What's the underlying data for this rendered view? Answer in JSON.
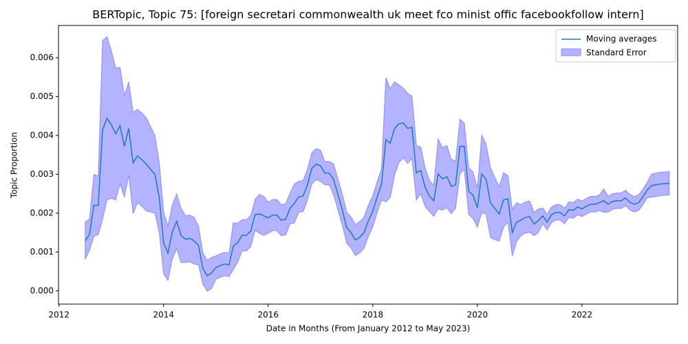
{
  "chart_data": {
    "type": "line",
    "title": "BERTopic, Topic 75: [foreign secretari commonwealth uk meet fco minist offic facebookfollow intern]",
    "xlabel": "Date in Months (From January 2012 to May 2023)",
    "ylabel": "Topic Proportion",
    "x": [
      2012.5,
      2012.583,
      2012.667,
      2012.75,
      2012.833,
      2012.917,
      2013,
      2013.083,
      2013.167,
      2013.25,
      2013.333,
      2013.417,
      2013.5,
      2013.583,
      2013.667,
      2013.75,
      2013.833,
      2013.917,
      2014,
      2014.083,
      2014.167,
      2014.25,
      2014.333,
      2014.417,
      2014.5,
      2014.583,
      2014.667,
      2014.75,
      2014.833,
      2014.917,
      2015,
      2015.083,
      2015.167,
      2015.25,
      2015.333,
      2015.417,
      2015.5,
      2015.583,
      2015.667,
      2015.75,
      2015.833,
      2015.917,
      2016,
      2016.083,
      2016.167,
      2016.25,
      2016.333,
      2016.417,
      2016.5,
      2016.583,
      2016.667,
      2016.75,
      2016.833,
      2016.917,
      2017,
      2017.083,
      2017.167,
      2017.25,
      2017.333,
      2017.417,
      2017.5,
      2017.583,
      2017.667,
      2017.75,
      2017.833,
      2017.917,
      2018,
      2018.083,
      2018.167,
      2018.25,
      2018.333,
      2018.417,
      2018.5,
      2018.583,
      2018.667,
      2018.75,
      2018.833,
      2018.917,
      2019,
      2019.083,
      2019.167,
      2019.25,
      2019.333,
      2019.417,
      2019.5,
      2019.583,
      2019.667,
      2019.75,
      2019.833,
      2019.917,
      2020,
      2020.083,
      2020.167,
      2020.25,
      2020.333,
      2020.417,
      2020.5,
      2020.583,
      2020.667,
      2020.75,
      2020.833,
      2020.917,
      2021,
      2021.083,
      2021.167,
      2021.25,
      2021.333,
      2021.417,
      2021.5,
      2021.583,
      2021.667,
      2021.75,
      2021.833,
      2021.917,
      2022,
      2022.083,
      2022.167,
      2022.25,
      2022.333,
      2022.417,
      2022.5,
      2022.583,
      2022.667,
      2022.75,
      2022.833,
      2022.917,
      2023,
      2023.083,
      2023.167,
      2023.25,
      2023.333,
      2023.417,
      2023.5,
      2023.583,
      2023.667
    ],
    "series": [
      {
        "name": "Moving averages",
        "color": "#1f77b4",
        "error_name": "Standard Error",
        "error_color": "#b3b3ff",
        "error_edge": "#8a8aff",
        "values": [
          0.00129,
          0.00145,
          0.0022,
          0.0022,
          0.00414,
          0.00444,
          0.00428,
          0.00404,
          0.00425,
          0.00372,
          0.00418,
          0.00329,
          0.00347,
          0.00338,
          0.00326,
          0.00313,
          0.003,
          0.0024,
          0.00124,
          0.00097,
          0.00152,
          0.00179,
          0.00143,
          0.00133,
          0.00135,
          0.00129,
          0.00117,
          0.00058,
          0.00039,
          0.00046,
          0.0006,
          0.00065,
          0.00069,
          0.00067,
          0.00115,
          0.00124,
          0.00143,
          0.00143,
          0.00154,
          0.00196,
          0.00198,
          0.00193,
          0.00188,
          0.00195,
          0.00195,
          0.00182,
          0.00184,
          0.00212,
          0.00225,
          0.00242,
          0.00244,
          0.00273,
          0.00315,
          0.00326,
          0.00322,
          0.00303,
          0.00303,
          0.00287,
          0.00248,
          0.00209,
          0.00163,
          0.0015,
          0.00131,
          0.00138,
          0.0015,
          0.00181,
          0.00205,
          0.00241,
          0.00274,
          0.00389,
          0.0038,
          0.00418,
          0.0043,
          0.00432,
          0.00418,
          0.00421,
          0.00304,
          0.0031,
          0.00267,
          0.00244,
          0.00232,
          0.00301,
          0.00288,
          0.00294,
          0.00269,
          0.00273,
          0.00372,
          0.00372,
          0.00257,
          0.00246,
          0.00214,
          0.00301,
          0.00287,
          0.00227,
          0.00212,
          0.00198,
          0.00234,
          0.00237,
          0.0015,
          0.00177,
          0.00182,
          0.00189,
          0.00191,
          0.00172,
          0.00181,
          0.00193,
          0.00177,
          0.00196,
          0.00202,
          0.00202,
          0.00193,
          0.00209,
          0.00207,
          0.00216,
          0.00211,
          0.00218,
          0.00223,
          0.00223,
          0.00227,
          0.00232,
          0.00223,
          0.0023,
          0.00232,
          0.00232,
          0.00239,
          0.00228,
          0.00223,
          0.00227,
          0.00242,
          0.0026,
          0.00271,
          0.00273,
          0.00275,
          0.00276,
          0.00277
        ],
        "errors": [
          0.00048,
          0.0004,
          0.0008,
          0.00075,
          0.0023,
          0.0021,
          0.0019,
          0.0017,
          0.0015,
          0.0013,
          0.0012,
          0.0013,
          0.0012,
          0.0012,
          0.0012,
          0.0011,
          0.001,
          0.0009,
          0.0008,
          0.0007,
          0.0007,
          0.0007,
          0.0007,
          0.0006,
          0.0006,
          0.0006,
          0.0005,
          0.0004,
          0.0004,
          0.0004,
          0.0003,
          0.0003,
          0.0003,
          0.0003,
          0.0006,
          0.0005,
          0.0004,
          0.0004,
          0.0004,
          0.0004,
          0.0005,
          0.0005,
          0.0004,
          0.0004,
          0.0004,
          0.0004,
          0.0004,
          0.0004,
          0.0005,
          0.0004,
          0.0004,
          0.0004,
          0.0004,
          0.0004,
          0.0004,
          0.0003,
          0.0003,
          0.0004,
          0.0004,
          0.0004,
          0.0004,
          0.0004,
          0.0004,
          0.0004,
          0.0004,
          0.0004,
          0.0004,
          0.0004,
          0.0004,
          0.0016,
          0.0014,
          0.0012,
          0.001,
          0.0009,
          0.0009,
          0.0008,
          0.0007,
          0.0006,
          0.0005,
          0.0004,
          0.0004,
          0.0009,
          0.0008,
          0.0008,
          0.0007,
          0.0006,
          0.0007,
          0.0006,
          0.0006,
          0.0006,
          0.0005,
          0.001,
          0.0009,
          0.0009,
          0.0008,
          0.0007,
          0.0007,
          0.0006,
          0.0006,
          0.0005,
          0.0004,
          0.0004,
          0.0004,
          0.0003,
          0.0003,
          0.0002,
          0.0002,
          0.0002,
          0.0002,
          0.0002,
          0.0002,
          0.0002,
          0.0002,
          0.0002,
          0.0002,
          0.0002,
          0.0002,
          0.0002,
          0.0002,
          0.0003,
          0.0002,
          0.0002,
          0.0002,
          0.0002,
          0.0002,
          0.0002,
          0.0002,
          0.0002,
          0.0002,
          0.0002,
          0.0003,
          0.0003,
          0.0003,
          0.0003,
          0.0003
        ]
      }
    ],
    "xlim": [
      2011.99,
      2023.83
    ],
    "ylim": [
      -0.00034,
      0.00683
    ],
    "xticks": [
      2012,
      2014,
      2016,
      2018,
      2020,
      2022
    ],
    "yticks": [
      {
        "value": 0,
        "label": "0.000"
      },
      {
        "value": 0.001,
        "label": "0.001"
      },
      {
        "value": 0.002,
        "label": "0.002"
      },
      {
        "value": 0.003,
        "label": "0.003"
      },
      {
        "value": 0.004,
        "label": "0.004"
      },
      {
        "value": 0.005,
        "label": "0.005"
      },
      {
        "value": 0.006,
        "label": "0.006"
      }
    ],
    "legend": "upper right"
  }
}
